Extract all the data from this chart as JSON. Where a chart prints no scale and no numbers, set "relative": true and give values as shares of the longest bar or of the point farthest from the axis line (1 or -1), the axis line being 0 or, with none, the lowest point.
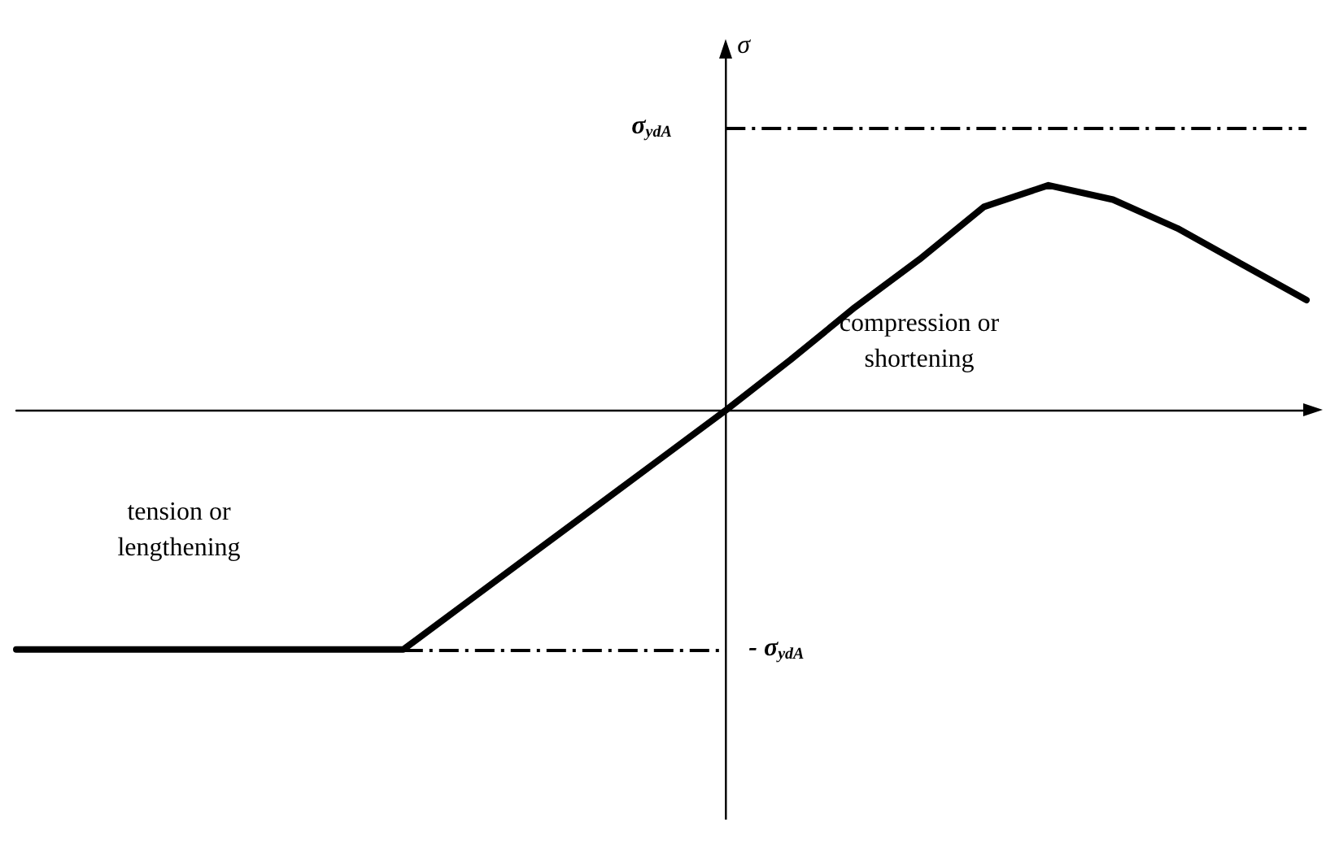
{
  "chart_data": {
    "type": "line",
    "relative": true,
    "ylabel": "σ",
    "categories": [
      null,
      null,
      null,
      null,
      null,
      null,
      null,
      null,
      null,
      null,
      null,
      null,
      null,
      null,
      null,
      null,
      null,
      null,
      null,
      null,
      null
    ],
    "series": [
      {
        "color": "#000000",
        "values": [
          -1,
          -1,
          -1,
          -1,
          -1,
          -1,
          -1,
          -0.8,
          -0.6,
          -0.4,
          -0.2,
          0,
          0.21,
          0.43,
          0.63,
          0.85,
          0.94,
          0.88,
          0.76,
          0.61,
          0.46
        ]
      }
    ],
    "ref_lines": [
      {
        "axis": "y",
        "value": 1.18,
        "label": "σ$_{ydA}$",
        "color": "#000000",
        "line_style": "dashdot"
      },
      {
        "axis": "y",
        "value": -1,
        "label": "- σ$_{ydA}$",
        "color": "#000000",
        "line_style": "dashdot"
      }
    ],
    "annotations": [
      "compression or\nshortening",
      "tension or\nlengthening"
    ],
    "marker": "none",
    "line_style": "solid",
    "grid": false
  }
}
